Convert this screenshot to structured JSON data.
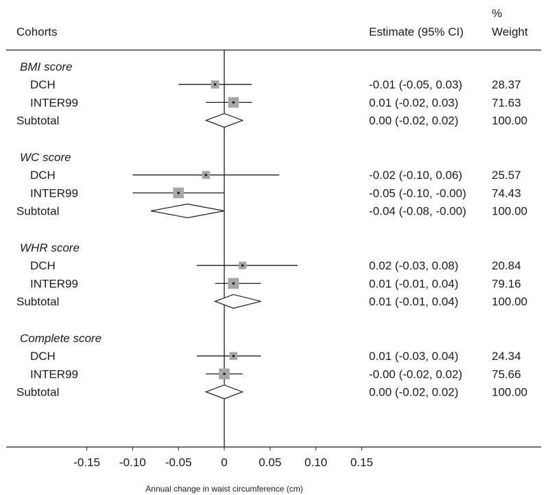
{
  "chart_data": {
    "type": "forest",
    "header": {
      "cohorts": "Cohorts",
      "estimate": "Estimate (95% CI)",
      "weight_line1": "%",
      "weight_line2": "Weight"
    },
    "xlabel": "Annual change in waist circumference (cm)",
    "xticks": [
      -0.15,
      -0.1,
      -0.05,
      0,
      0.05,
      0.1,
      0.15
    ],
    "xtick_labels": [
      "-0.15",
      "-0.10",
      "-0.05",
      "0",
      "0.05",
      "0.10",
      "0.15"
    ],
    "reference_line": 0,
    "groups": [
      {
        "name": "BMI score",
        "studies": [
          {
            "label": "DCH",
            "est": -0.01,
            "lo": -0.05,
            "hi": 0.03,
            "ci_text": "-0.01 (-0.05, 0.03)",
            "weight": "28.37",
            "w": 28.37
          },
          {
            "label": "INTER99",
            "est": 0.01,
            "lo": -0.02,
            "hi": 0.03,
            "ci_text": "0.01 (-0.02, 0.03)",
            "weight": "71.63",
            "w": 71.63
          }
        ],
        "subtotal": {
          "label": "Subtotal",
          "est": 0.0,
          "lo": -0.02,
          "hi": 0.02,
          "ci_text": "0.00 (-0.02, 0.02)",
          "weight": "100.00"
        }
      },
      {
        "name": "WC score",
        "studies": [
          {
            "label": "DCH",
            "est": -0.02,
            "lo": -0.1,
            "hi": 0.06,
            "ci_text": "-0.02 (-0.10, 0.06)",
            "weight": "25.57",
            "w": 25.57
          },
          {
            "label": "INTER99",
            "est": -0.05,
            "lo": -0.1,
            "hi": -0.0,
            "ci_text": "-0.05 (-0.10, -0.00)",
            "weight": "74.43",
            "w": 74.43
          }
        ],
        "subtotal": {
          "label": "Subtotal",
          "est": -0.04,
          "lo": -0.08,
          "hi": -0.0,
          "ci_text": "-0.04 (-0.08, -0.00)",
          "weight": "100.00"
        }
      },
      {
        "name": "WHR score",
        "studies": [
          {
            "label": "DCH",
            "est": 0.02,
            "lo": -0.03,
            "hi": 0.08,
            "ci_text": "0.02 (-0.03, 0.08)",
            "weight": "20.84",
            "w": 20.84
          },
          {
            "label": "INTER99",
            "est": 0.01,
            "lo": -0.01,
            "hi": 0.04,
            "ci_text": "0.01 (-0.01, 0.04)",
            "weight": "79.16",
            "w": 79.16
          }
        ],
        "subtotal": {
          "label": "Subtotal",
          "est": 0.01,
          "lo": -0.01,
          "hi": 0.04,
          "ci_text": "0.01 (-0.01, 0.04)",
          "weight": "100.00"
        }
      },
      {
        "name": "Complete score",
        "studies": [
          {
            "label": "DCH",
            "est": 0.01,
            "lo": -0.03,
            "hi": 0.04,
            "ci_text": "0.01 (-0.03, 0.04)",
            "weight": "24.34",
            "w": 24.34
          },
          {
            "label": "INTER99",
            "est": -0.0,
            "lo": -0.02,
            "hi": 0.02,
            "ci_text": "-0.00 (-0.02, 0.02)",
            "weight": "75.66",
            "w": 75.66
          }
        ],
        "subtotal": {
          "label": "Subtotal",
          "est": 0.0,
          "lo": -0.02,
          "hi": 0.02,
          "ci_text": "0.00 (-0.02, 0.02)",
          "weight": "100.00"
        }
      }
    ],
    "colors": {
      "ink": "#1a1a1a",
      "square": "#a6a6a6",
      "background": "#ffffff"
    }
  }
}
